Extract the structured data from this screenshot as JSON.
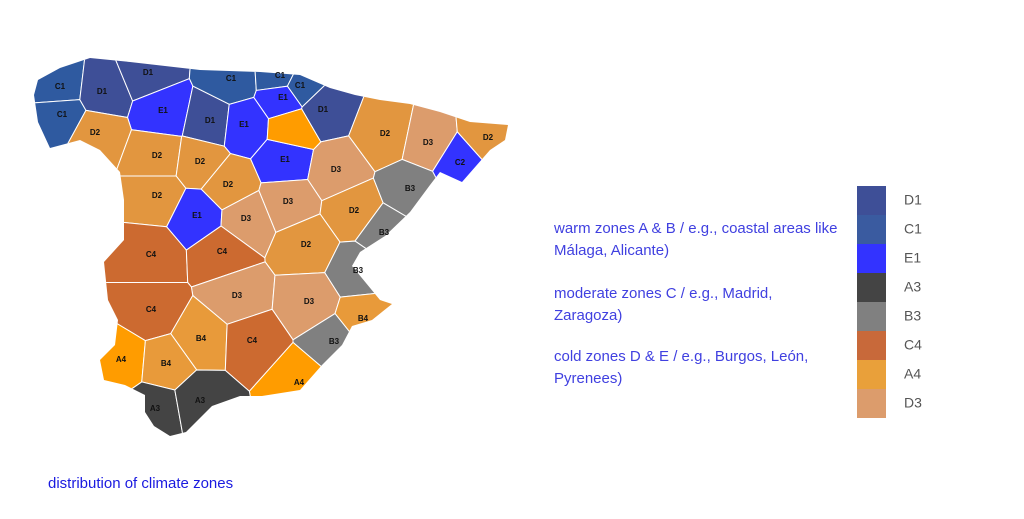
{
  "regions": [
    {
      "label": "C1",
      "color": "#2f5aa0"
    },
    {
      "label": "C1",
      "color": "#2f5aa0"
    },
    {
      "label": "D1",
      "color": "#3e4f97"
    },
    {
      "label": "D1",
      "color": "#3e4f97"
    },
    {
      "label": "C1",
      "color": "#2f5aa0"
    },
    {
      "label": "C1",
      "color": "#2f5aa0"
    },
    {
      "label": "C1",
      "color": "#2f5aa0"
    },
    {
      "label": "E1",
      "color": "#3333ff"
    },
    {
      "label": "E1",
      "color": "#3333ff"
    },
    {
      "label": "D1",
      "color": "#3e4f97"
    },
    {
      "label": "E1",
      "color": "#3333ff"
    },
    {
      "label": "D1",
      "color": "#3e4f97"
    },
    {
      "label": "D2",
      "color": "#e2963f"
    },
    {
      "label": "D2",
      "color": "#e2963f"
    },
    {
      "label": "D2",
      "color": "#e2963f"
    },
    {
      "label": "E1",
      "color": "#3333ff"
    },
    {
      "label": "D3",
      "color": "#dc9c6c"
    },
    {
      "label": "D2",
      "color": "#e2963f"
    },
    {
      "label": "D3",
      "color": "#dc9c6c"
    },
    {
      "label": "C2",
      "color": "#3333ff"
    },
    {
      "label": "D2",
      "color": "#e2963f"
    },
    {
      "label": "D2",
      "color": "#e2963f"
    },
    {
      "label": "D2",
      "color": "#e2963f"
    },
    {
      "label": "E1",
      "color": "#3333ff"
    },
    {
      "label": "D3",
      "color": "#dc9c6c"
    },
    {
      "label": "D3",
      "color": "#dc9c6c"
    },
    {
      "label": "D2",
      "color": "#e2963f"
    },
    {
      "label": "B3",
      "color": "#808080"
    },
    {
      "label": "D2",
      "color": "#e2963f"
    },
    {
      "label": "B3",
      "color": "#808080"
    },
    {
      "label": "C4",
      "color": "#cc6a30"
    },
    {
      "label": "C4",
      "color": "#cc6a30"
    },
    {
      "label": "B3",
      "color": "#808080"
    },
    {
      "label": "D3",
      "color": "#dc9c6c"
    },
    {
      "label": "D3",
      "color": "#dc9c6c"
    },
    {
      "label": "C4",
      "color": "#cc6a30"
    },
    {
      "label": "B4",
      "color": "#e89a3a"
    },
    {
      "label": "C4",
      "color": "#cc6a30"
    },
    {
      "label": "B4",
      "color": "#e89a3a"
    },
    {
      "label": "B3",
      "color": "#808080"
    },
    {
      "label": "A4",
      "color": "#ff9c00"
    },
    {
      "label": "B4",
      "color": "#e89a3a"
    },
    {
      "label": "A4",
      "color": "#ff9c00"
    },
    {
      "label": "A3",
      "color": "#444444"
    },
    {
      "label": "A3",
      "color": "#444444"
    },
    {
      "label": null,
      "color": "#ff9c00"
    }
  ],
  "notes": [
    "warm zones A & B / e.g., coastal areas like Málaga, Alicante)",
    "moderate zones C / e.g., Madrid, Zaragoza)",
    "cold zones D & E / e.g., Burgos, León, Pyrenees)"
  ],
  "legend": [
    {
      "label": "D1",
      "color": "#3e4f97"
    },
    {
      "label": "C1",
      "color": "#3a5ba0"
    },
    {
      "label": "E1",
      "color": "#3333ff"
    },
    {
      "label": "A3",
      "color": "#444444"
    },
    {
      "label": "B3",
      "color": "#808080"
    },
    {
      "label": "C4",
      "color": "#c8693a"
    },
    {
      "label": "A4",
      "color": "#e9a03a"
    },
    {
      "label": "D3",
      "color": "#dc9c6c"
    }
  ],
  "caption": "distribution of climate zones"
}
